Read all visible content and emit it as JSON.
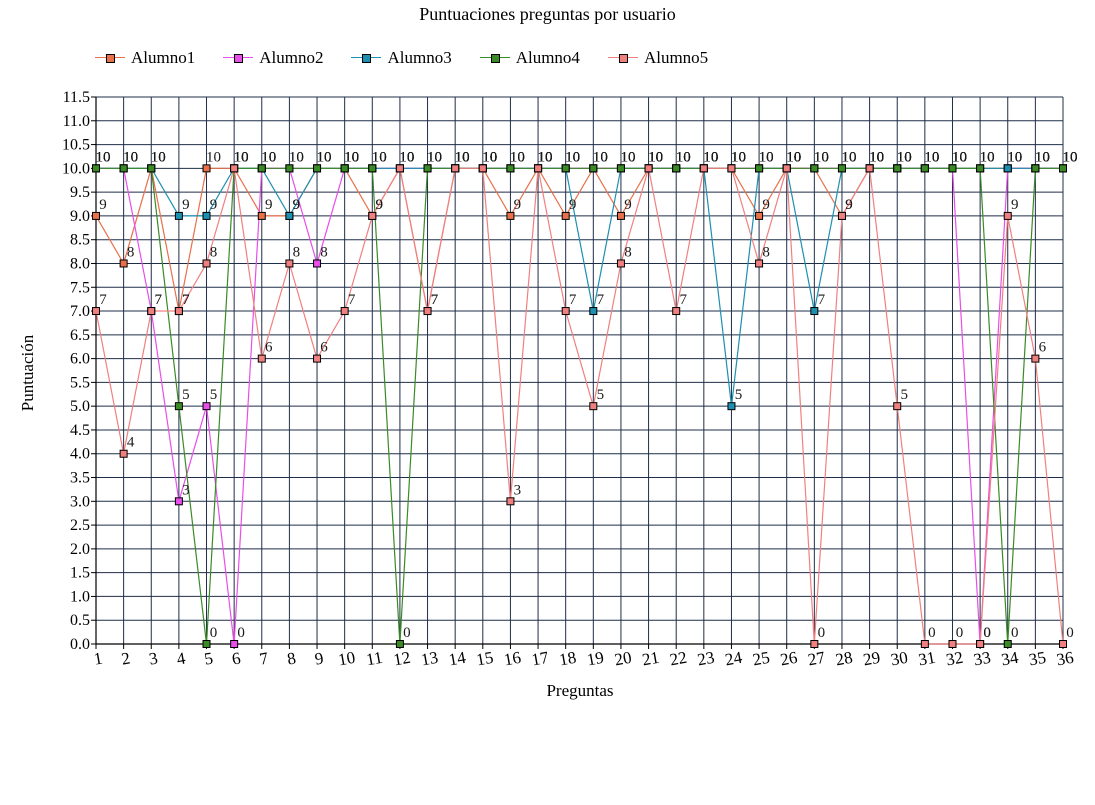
{
  "chart_data": {
    "type": "line",
    "title": "Puntuaciones preguntas por usuario",
    "xlabel": "Preguntas",
    "ylabel": "Puntuación",
    "ylim": [
      0,
      11.5
    ],
    "ytick_step": 0.5,
    "categories": [
      "1",
      "2",
      "3",
      "4",
      "5",
      "6",
      "7",
      "8",
      "9",
      "10",
      "11",
      "12",
      "13",
      "14",
      "15",
      "16",
      "17",
      "18",
      "19",
      "20",
      "21",
      "22",
      "23",
      "24",
      "25",
      "26",
      "27",
      "28",
      "29",
      "30",
      "31",
      "32",
      "33",
      "34",
      "35",
      "36"
    ],
    "legend_position": "top",
    "grid": true,
    "series": [
      {
        "name": "Alumno1",
        "color": "#e8704a",
        "values": [
          9,
          8,
          10,
          7,
          10,
          10,
          9,
          9,
          10,
          10,
          9,
          10,
          7,
          10,
          10,
          9,
          10,
          9,
          10,
          9,
          10,
          10,
          10,
          10,
          9,
          10,
          10,
          9,
          10,
          10,
          10,
          10,
          10,
          10,
          10,
          10
        ]
      },
      {
        "name": "Alumno2",
        "color": "#e84ee8",
        "values": [
          10,
          10,
          7,
          3,
          5,
          0,
          10,
          10,
          8,
          10,
          10,
          10,
          10,
          10,
          10,
          10,
          10,
          10,
          10,
          10,
          10,
          10,
          10,
          10,
          10,
          10,
          10,
          10,
          10,
          10,
          10,
          10,
          0,
          10,
          10,
          10
        ]
      },
      {
        "name": "Alumno3",
        "color": "#1d8fb0",
        "values": [
          10,
          10,
          10,
          9,
          9,
          10,
          10,
          9,
          10,
          10,
          10,
          10,
          10,
          10,
          10,
          10,
          10,
          10,
          7,
          10,
          10,
          10,
          10,
          5,
          10,
          10,
          7,
          10,
          10,
          10,
          10,
          10,
          10,
          10,
          10,
          10
        ]
      },
      {
        "name": "Alumno4",
        "color": "#3a8a26",
        "values": [
          10,
          10,
          10,
          5,
          0,
          10,
          10,
          10,
          10,
          10,
          10,
          0,
          10,
          10,
          10,
          10,
          10,
          10,
          10,
          10,
          10,
          10,
          10,
          10,
          10,
          10,
          10,
          10,
          10,
          10,
          10,
          10,
          10,
          0,
          10,
          10
        ]
      },
      {
        "name": "Alumno5",
        "color": "#f08080",
        "values": [
          7,
          4,
          7,
          7,
          8,
          10,
          6,
          8,
          6,
          7,
          9,
          10,
          7,
          10,
          10,
          3,
          10,
          7,
          5,
          8,
          10,
          7,
          10,
          10,
          8,
          10,
          0,
          9,
          10,
          5,
          0,
          0,
          0,
          9,
          6,
          0
        ]
      }
    ]
  }
}
